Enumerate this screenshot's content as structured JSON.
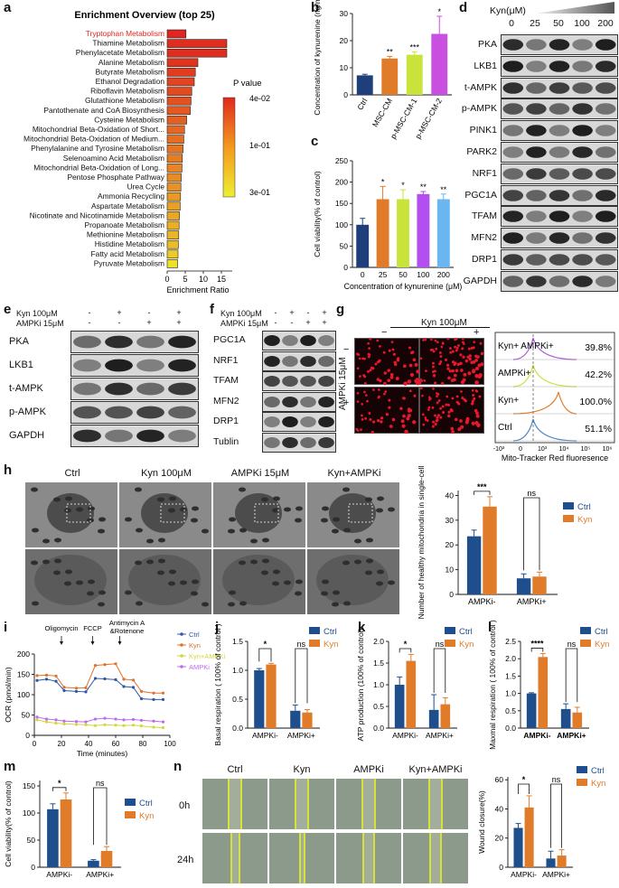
{
  "panels": {
    "a": "a",
    "b": "b",
    "c": "c",
    "d": "d",
    "e": "e",
    "f": "f",
    "g": "g",
    "h": "h",
    "i": "i",
    "j": "j",
    "k": "k",
    "l": "l",
    "m": "m",
    "n": "n"
  },
  "colors": {
    "ctrl": "#1f4e8c",
    "kyn": "#e07b2a",
    "navy": "#1f3f7a",
    "lime": "#c9e33a",
    "magenta": "#c84fe0",
    "cyan": "#6ab6f0",
    "purple": "#b34ef0",
    "red_hl": "#e0261e"
  },
  "chart_data": [
    {
      "id": "a",
      "type": "bar",
      "title": "Enrichment Overview (top 25)",
      "xlabel": "Enrichment Ratio",
      "xticks": [
        "0",
        "5",
        "10",
        "15"
      ],
      "legend_title": "P value",
      "legend_ticks": [
        "4e-02",
        "1e-01",
        "3e-01"
      ],
      "categories": [
        "Tryptophan Metabolism",
        "Thiamine Metabolism",
        "Phenylacetate Metabolism",
        "Alanine Metabolism",
        "Butyrate Metabolism",
        "Ethanol Degradation",
        "Riboflavin Metabolism",
        "Glutathione Metabolism",
        "Pantothenate and CoA Biosynthesis",
        "Cysteine Metabolism",
        "Mitochondrial Beta-Oxidation of Short...",
        "Mitochondrial Beta-Oxidation of Medium...",
        "Phenylalanine and Tyrosine Metabolism",
        "Selenoamino Acid Metabolism",
        "Mitochondrial Beta-Oxidation of Long...",
        "Pentose Phosphate Pathway",
        "Urea Cycle",
        "Ammonia Recycling",
        "Aspartate Metabolism",
        "Nicotinate and Nicotinamide Metabolism",
        "Propanoate Metabolism",
        "Methionine Metabolism",
        "Histidine Metabolism",
        "Fatty acid Metabolism",
        "Pyruvate Metabolism"
      ],
      "values": [
        5.2,
        16.5,
        16.5,
        8.5,
        7.8,
        7.5,
        6.8,
        6.6,
        6.4,
        5.4,
        4.8,
        4.6,
        4.4,
        4.2,
        4.1,
        3.9,
        3.8,
        3.7,
        3.6,
        3.4,
        3.3,
        3.2,
        3.1,
        3.0,
        2.9
      ],
      "pvalues": [
        0.04,
        0.05,
        0.05,
        0.06,
        0.07,
        0.08,
        0.09,
        0.1,
        0.11,
        0.12,
        0.13,
        0.14,
        0.15,
        0.16,
        0.17,
        0.18,
        0.19,
        0.2,
        0.21,
        0.22,
        0.23,
        0.24,
        0.25,
        0.27,
        0.3
      ],
      "xlim": [
        0,
        18
      ]
    },
    {
      "id": "b",
      "type": "bar",
      "ylabel": "Concentration of kynurenine (ng/ml)",
      "categories": [
        "Ctrl",
        "MSC-CM",
        "p-MSC-CM-1",
        "p-MSC-CM-2"
      ],
      "values": [
        7.2,
        13.4,
        14.8,
        22.5
      ],
      "errors": [
        0.4,
        0.8,
        1.0,
        6.5
      ],
      "sig": [
        "",
        "**",
        "***",
        "*"
      ],
      "yticks": [
        "0",
        "10",
        "20",
        "30"
      ],
      "ylim": [
        0,
        30
      ]
    },
    {
      "id": "c",
      "type": "bar",
      "ylabel": "Cell viability(% of control)",
      "xlabel": "Concentration of kynurenine (μM)",
      "categories": [
        "0",
        "25",
        "50",
        "100",
        "200"
      ],
      "values": [
        100,
        160,
        160,
        172,
        160
      ],
      "errors": [
        15,
        30,
        22,
        6,
        12
      ],
      "sig": [
        "",
        "*",
        "*",
        "**",
        "**"
      ],
      "yticks": [
        "0",
        "50",
        "100",
        "150",
        "200",
        "250"
      ],
      "ylim": [
        0,
        250
      ]
    },
    {
      "id": "h",
      "type": "bar",
      "ylabel": "Number of healthy mitochondria in single-cell",
      "categories": [
        "AMPKi-",
        "AMPKi+"
      ],
      "series": [
        {
          "name": "Ctrl",
          "values": [
            23.5,
            6.5
          ],
          "errors": [
            2.5,
            1.8
          ]
        },
        {
          "name": "Kyn",
          "values": [
            35.5,
            7.2
          ],
          "errors": [
            4.0,
            1.8
          ]
        }
      ],
      "sig": [
        "***",
        "ns"
      ],
      "yticks": [
        "0",
        "10",
        "20",
        "30",
        "40"
      ],
      "ylim": [
        0,
        42
      ]
    },
    {
      "id": "i",
      "type": "line",
      "ylabel": "OCR (pmol/min)",
      "xlabel": "Time (minutes)",
      "xticks": [
        "0",
        "20",
        "40",
        "60",
        "80",
        "100"
      ],
      "yticks": [
        "0",
        "50",
        "100",
        "150",
        "200"
      ],
      "xlim": [
        0,
        100
      ],
      "ylim": [
        0,
        200
      ],
      "annotations": [
        "Oligomycin",
        "FCCP",
        "Antimycin A &Rotenone"
      ],
      "x": [
        2,
        9,
        16,
        22,
        31,
        38,
        45,
        52,
        60,
        66,
        73,
        79,
        88,
        95
      ],
      "series": [
        {
          "name": "Ctrl",
          "values": [
            135,
            138,
            133,
            110,
            108,
            107,
            140,
            139,
            137,
            120,
            118,
            90,
            88,
            88
          ]
        },
        {
          "name": "Kyn",
          "values": [
            147,
            148,
            146,
            118,
            116,
            117,
            172,
            174,
            176,
            138,
            136,
            108,
            104,
            104
          ]
        },
        {
          "name": "Kyn+AMPKi",
          "values": [
            38,
            33,
            30,
            28,
            27,
            26,
            24,
            26,
            25,
            24,
            25,
            23,
            20,
            19
          ]
        },
        {
          "name": "AMPKi",
          "values": [
            45,
            40,
            38,
            35,
            34,
            33,
            40,
            42,
            40,
            38,
            39,
            37,
            35,
            33
          ]
        }
      ]
    },
    {
      "id": "j",
      "type": "bar",
      "ylabel": "Basal respiration ( 100% of control )",
      "categories": [
        "AMPKi-",
        "AMPKi+"
      ],
      "series": [
        {
          "name": "Ctrl",
          "values": [
            1.0,
            0.3
          ],
          "errors": [
            0.03,
            0.1
          ]
        },
        {
          "name": "Kyn",
          "values": [
            1.1,
            0.27
          ],
          "errors": [
            0.02,
            0.05
          ]
        }
      ],
      "sig": [
        "*",
        "ns"
      ],
      "yticks": [
        "0.0",
        "0.5",
        "1.0",
        "1.5"
      ],
      "ylim": [
        0,
        1.5
      ]
    },
    {
      "id": "k",
      "type": "bar",
      "ylabel": "ATP production (100% of control)",
      "categories": [
        "AMPKi-",
        "AMPKi+"
      ],
      "series": [
        {
          "name": "Ctrl",
          "values": [
            1.0,
            0.42
          ],
          "errors": [
            0.18,
            0.35
          ]
        },
        {
          "name": "Kyn",
          "values": [
            1.55,
            0.55
          ],
          "errors": [
            0.15,
            0.15
          ]
        }
      ],
      "sig": [
        "*",
        "ns"
      ],
      "yticks": [
        "0.0",
        "0.5",
        "1.0",
        "1.5",
        "2.0"
      ],
      "ylim": [
        0,
        2.0
      ]
    },
    {
      "id": "l",
      "type": "bar",
      "ylabel": "Maxmal respiration ( 100% of control )",
      "categories": [
        "AMPKi-",
        "AMPKi+"
      ],
      "series": [
        {
          "name": "Ctrl",
          "values": [
            1.0,
            0.55
          ],
          "errors": [
            0.02,
            0.15
          ]
        },
        {
          "name": "Kyn",
          "values": [
            2.05,
            0.45
          ],
          "errors": [
            0.1,
            0.15
          ]
        }
      ],
      "sig": [
        "****",
        "ns"
      ],
      "yticks": [
        "0.0",
        "0.5",
        "1.0",
        "1.5",
        "2.0",
        "2.5"
      ],
      "ylim": [
        0,
        2.5
      ]
    },
    {
      "id": "m",
      "type": "bar",
      "ylabel": "Cell viability(% of control)",
      "categories": [
        "AMPKi-",
        "AMPKi+"
      ],
      "series": [
        {
          "name": "Ctrl",
          "values": [
            107,
            12
          ],
          "errors": [
            10,
            2
          ]
        },
        {
          "name": "Kyn",
          "values": [
            125,
            30
          ],
          "errors": [
            12,
            8
          ]
        }
      ],
      "sig": [
        "*",
        "ns"
      ],
      "yticks": [
        "0",
        "50",
        "100",
        "150"
      ],
      "ylim": [
        0,
        160
      ]
    },
    {
      "id": "n",
      "type": "bar",
      "ylabel": "Wound closure(%)",
      "categories": [
        "AMPKi-",
        "AMPKi+"
      ],
      "series": [
        {
          "name": "Ctrl",
          "values": [
            27,
            6
          ],
          "errors": [
            3,
            5
          ]
        },
        {
          "name": "Kyn",
          "values": [
            41,
            8
          ],
          "errors": [
            8,
            4
          ]
        }
      ],
      "sig": [
        "*",
        "ns"
      ],
      "yticks": [
        "0",
        "20",
        "40",
        "60"
      ],
      "ylim": [
        0,
        62
      ]
    },
    {
      "id": "g_flow",
      "type": "histogram",
      "xlabel": "Mito-Tracker Red fluoresence",
      "categories": [
        "Kyn+ AMPKi+",
        "AMPKi+",
        "Kyn+",
        "Ctrl"
      ],
      "values": [
        39.8,
        42.2,
        100.0,
        51.1
      ],
      "value_labels": [
        "39.8%",
        "42.2%",
        "100.0%",
        "51.1%"
      ],
      "xticks": [
        "-10³",
        "0",
        "10³",
        "10⁴",
        "10⁵",
        "10⁶"
      ]
    }
  ],
  "panel_d": {
    "title": "Kyn(μM)",
    "concentrations": [
      "0",
      "25",
      "50",
      "100",
      "200"
    ],
    "proteins": [
      "PKA",
      "LKB1",
      "t-AMPK",
      "p-AMPK",
      "PINK1",
      "PARK2",
      "NRF1",
      "PGC1A",
      "TFAM",
      "MFN2",
      "DRP1",
      "GAPDH"
    ]
  },
  "panel_e": {
    "row1_label": "Kyn 100μM",
    "row1_signs": [
      "-",
      "+",
      "-",
      "+"
    ],
    "row2_label": "AMPKi 15μM",
    "row2_signs": [
      "-",
      "-",
      "+",
      "+"
    ],
    "proteins": [
      "PKA",
      "LKB1",
      "t-AMPK",
      "p-AMPK",
      "GAPDH"
    ]
  },
  "panel_f": {
    "row1_label": "Kyn 100μM",
    "row1_signs": [
      "-",
      "+",
      "-",
      "+"
    ],
    "row2_label": "AMPKi 15μM",
    "row2_signs": [
      "-",
      "-",
      "+",
      "+"
    ],
    "proteins": [
      "PGC1A",
      "NRF1",
      "TFAM",
      "MFN2",
      "DRP1",
      "Tublin"
    ]
  },
  "panel_g": {
    "kyn_label": "Kyn 100μM",
    "minus": "−",
    "plus": "+",
    "ampki_label": "AMPKi 15μM"
  },
  "panel_h": {
    "conditions": [
      "Ctrl",
      "Kyn 100μM",
      "AMPKi 15μM",
      "Kyn+AMPKi"
    ]
  },
  "panel_n": {
    "conditions": [
      "Ctrl",
      "Kyn",
      "AMPKi",
      "Kyn+AMPKi"
    ],
    "times": [
      "0h",
      "24h"
    ]
  }
}
